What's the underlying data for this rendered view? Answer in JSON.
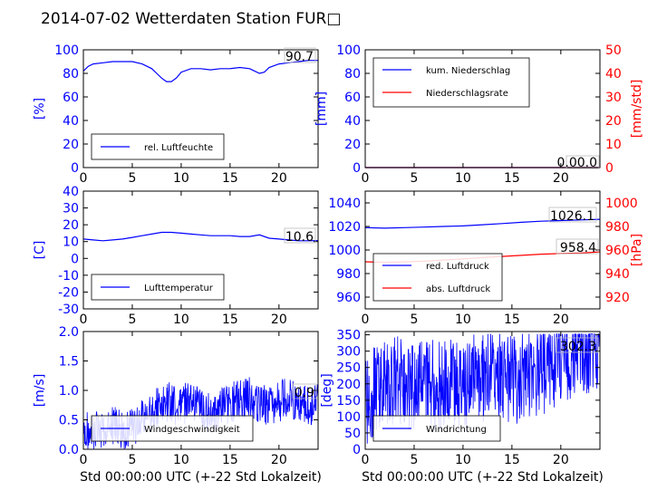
{
  "title": "2014-07-02 Wetterdaten Station FUR□",
  "colors": {
    "blue": "#0000ff",
    "red": "#ff0000",
    "black": "#000000"
  },
  "chart_data": [
    {
      "type": "line",
      "ylabel": "[%]",
      "ylim": [
        0,
        100
      ],
      "yticks": [
        0,
        20,
        40,
        60,
        80,
        100
      ],
      "xlim": [
        0,
        24
      ],
      "xticks": [
        0,
        5,
        10,
        15,
        20
      ],
      "series": [
        {
          "name": "rel. Luftfeuchte",
          "color": "#0000ff",
          "x": [
            0,
            0.5,
            1,
            2,
            3,
            4,
            5,
            6,
            7,
            7.5,
            8,
            8.5,
            9,
            9.5,
            10,
            11,
            12,
            13,
            14,
            15,
            16,
            17,
            17.5,
            18,
            18.5,
            19,
            20,
            21,
            22,
            23,
            24
          ],
          "y": [
            82,
            86,
            88,
            89,
            90,
            90,
            90,
            88,
            84,
            80,
            76,
            73,
            73,
            76,
            81,
            84,
            84,
            83,
            84,
            84,
            85,
            84,
            82,
            80,
            81,
            85,
            88,
            89,
            90,
            91,
            91
          ]
        }
      ],
      "annotation": "90.7",
      "legend": "bottom-left"
    },
    {
      "type": "line",
      "ylabel": "[mm]",
      "ylim": [
        0,
        100
      ],
      "yticks": [
        0,
        20,
        40,
        60,
        80,
        100
      ],
      "y2label": "[mm/std]",
      "y2lim": [
        0,
        50
      ],
      "y2ticks": [
        0,
        10,
        20,
        30,
        40,
        50
      ],
      "xlim": [
        0,
        24
      ],
      "xticks": [
        0,
        5,
        10,
        15,
        20
      ],
      "series": [
        {
          "name": "kum. Niederschlag",
          "color": "#0000ff",
          "axis": "left",
          "x": [
            0,
            24
          ],
          "y": [
            0,
            0
          ]
        },
        {
          "name": "Niederschlagsrate",
          "color": "#ff0000",
          "axis": "right",
          "x": [
            0,
            24
          ],
          "y": [
            0,
            0
          ]
        }
      ],
      "annotation": "0.00.0",
      "legend": "top-left"
    },
    {
      "type": "line",
      "ylabel": "[C]",
      "ylim": [
        -30,
        40
      ],
      "yticks": [
        -30,
        -20,
        -10,
        0,
        10,
        20,
        30,
        40
      ],
      "xlim": [
        0,
        24
      ],
      "xticks": [
        0,
        5,
        10,
        15,
        20
      ],
      "series": [
        {
          "name": "Lufttemperatur",
          "color": "#0000ff",
          "x": [
            0,
            1,
            2,
            3,
            4,
            5,
            6,
            7,
            8,
            9,
            10,
            11,
            12,
            13,
            14,
            15,
            16,
            17,
            18,
            19,
            20,
            21,
            22,
            23,
            24
          ],
          "y": [
            11.5,
            11,
            10.5,
            11,
            11.5,
            12.5,
            13.5,
            14.5,
            15.5,
            15.5,
            15,
            14.5,
            14,
            13.5,
            13.5,
            13.5,
            13,
            13,
            14,
            12,
            11.5,
            11,
            10.5,
            10.5,
            10.6
          ]
        }
      ],
      "annotation": "10.6",
      "legend": "bottom-left"
    },
    {
      "type": "line",
      "ylabel": "",
      "ylim": [
        950,
        1050
      ],
      "yticks": [
        960,
        980,
        1000,
        1020,
        1040
      ],
      "y2label": "[hPa]",
      "y2lim": [
        910,
        1010
      ],
      "y2ticks": [
        920,
        940,
        960,
        980,
        1000
      ],
      "xlim": [
        0,
        24
      ],
      "xticks": [
        0,
        5,
        10,
        15,
        20
      ],
      "series": [
        {
          "name": "red. Luftdruck",
          "color": "#0000ff",
          "axis": "left",
          "x": [
            0,
            2,
            4,
            6,
            8,
            10,
            12,
            14,
            16,
            18,
            20,
            22,
            24
          ],
          "y": [
            1019,
            1018.5,
            1019,
            1019.5,
            1020,
            1020.5,
            1021.5,
            1022.5,
            1023.5,
            1024.5,
            1025,
            1025.5,
            1026.1
          ]
        },
        {
          "name": "abs. Luftdruck",
          "color": "#ff0000",
          "axis": "right",
          "x": [
            0,
            2,
            4,
            6,
            8,
            10,
            12,
            14,
            16,
            18,
            20,
            22,
            24
          ],
          "y": [
            950,
            949.5,
            950,
            950.5,
            951.5,
            952.5,
            953.5,
            954.5,
            955.5,
            956.5,
            957,
            957.5,
            958.4
          ]
        }
      ],
      "annotation_left": "1026.1",
      "annotation_right": "958.4",
      "legend": "bottom-left"
    },
    {
      "type": "line",
      "ylabel": "[m/s]",
      "ylim": [
        0,
        2.0
      ],
      "yticks": [
        0.0,
        0.5,
        1.0,
        1.5,
        2.0
      ],
      "xlim": [
        0,
        24
      ],
      "xticks": [
        0,
        5,
        10,
        15,
        20
      ],
      "xlabel": "Std 00:00:00 UTC (+-22 Std Lokalzeit)",
      "series": [
        {
          "name": "Windgeschwindigkeit",
          "color": "#0000ff",
          "noisy": true,
          "x": [
            0,
            1,
            2,
            3,
            4,
            5,
            6,
            7,
            8,
            9,
            10,
            11,
            12,
            13,
            14,
            15,
            16,
            17,
            18,
            19,
            20,
            21,
            22,
            23,
            24
          ],
          "y": [
            0.3,
            0.3,
            0.35,
            0.4,
            0.3,
            0.35,
            0.5,
            0.6,
            0.8,
            0.8,
            0.7,
            0.9,
            0.7,
            0.6,
            0.7,
            0.8,
            0.85,
            0.9,
            0.8,
            0.7,
            0.8,
            0.9,
            0.8,
            0.7,
            0.9
          ]
        }
      ],
      "annotation": "0.9",
      "legend": "bottom-left"
    },
    {
      "type": "line",
      "ylabel": "[deg]",
      "ylim": [
        0,
        360
      ],
      "yticks": [
        0,
        50,
        100,
        150,
        200,
        250,
        300,
        350
      ],
      "xlim": [
        0,
        24
      ],
      "xticks": [
        0,
        5,
        10,
        15,
        20
      ],
      "xlabel": "Std 00:00:00 UTC (+-22 Std Lokalzeit)",
      "series": [
        {
          "name": "Windrichtung",
          "color": "#0000ff",
          "noisy": true,
          "x": [
            0,
            1,
            2,
            3,
            4,
            5,
            6,
            7,
            8,
            9,
            10,
            11,
            12,
            13,
            14,
            15,
            16,
            17,
            18,
            19,
            20,
            21,
            22,
            23,
            24
          ],
          "y": [
            150,
            180,
            200,
            220,
            200,
            180,
            220,
            200,
            190,
            200,
            180,
            210,
            220,
            230,
            230,
            210,
            220,
            230,
            240,
            250,
            280,
            290,
            300,
            300,
            302
          ]
        }
      ],
      "annotation": "302.3",
      "legend": "bottom-left"
    }
  ]
}
